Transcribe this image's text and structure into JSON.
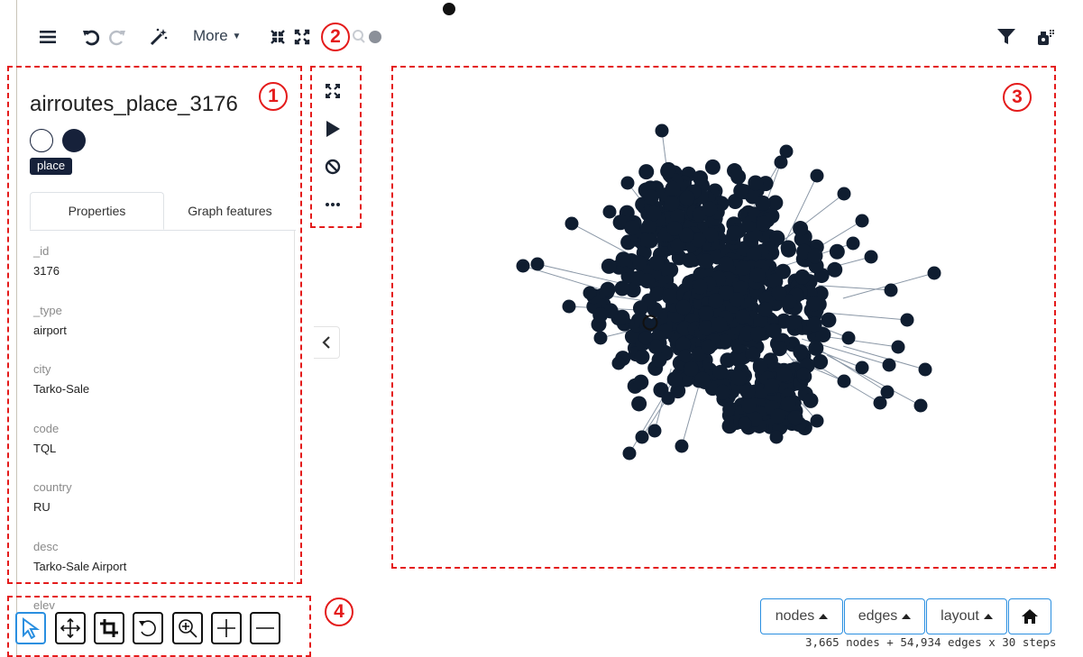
{
  "toolbar": {
    "more_label": "More",
    "icons": [
      "hamburger-icon",
      "undo-icon",
      "redo-icon",
      "magic-wand-icon",
      "collapse-icon",
      "expand-icon",
      "search-icon",
      "filter-icon",
      "settings-icon"
    ]
  },
  "annotations": [
    "1",
    "2",
    "3",
    "4"
  ],
  "node_panel": {
    "title": "airroutes_place_3176",
    "tag": "place",
    "tabs": [
      {
        "label": "Properties",
        "active": true
      },
      {
        "label": "Graph features",
        "active": false
      }
    ],
    "properties": [
      {
        "key": "_id",
        "value": "3176"
      },
      {
        "key": "_type",
        "value": "airport"
      },
      {
        "key": "city",
        "value": "Tarko-Sale"
      },
      {
        "key": "code",
        "value": "TQL"
      },
      {
        "key": "country",
        "value": "RU"
      },
      {
        "key": "desc",
        "value": "Tarko-Sale Airport"
      },
      {
        "key": "elev",
        "value": ""
      }
    ],
    "swatch_colors": [
      "#ffffff",
      "#16213a"
    ]
  },
  "graph_controls": [
    "fit-icon",
    "play-icon",
    "stop-icon",
    "more-dots-icon"
  ],
  "graph": {
    "node_color": "#0f1d30",
    "edge_color": "#8a97a6"
  },
  "bottom_controls": {
    "nodes_label": "nodes",
    "edges_label": "edges",
    "layout_label": "layout",
    "status": "3,665 nodes + 54,934 edges x 30 steps"
  },
  "tools": [
    "select-tool-icon",
    "pan-tool-icon",
    "crop-tool-icon",
    "rotate-tool-icon",
    "zoom-tool-icon",
    "zoom-in-tool-icon",
    "zoom-out-tool-icon"
  ]
}
